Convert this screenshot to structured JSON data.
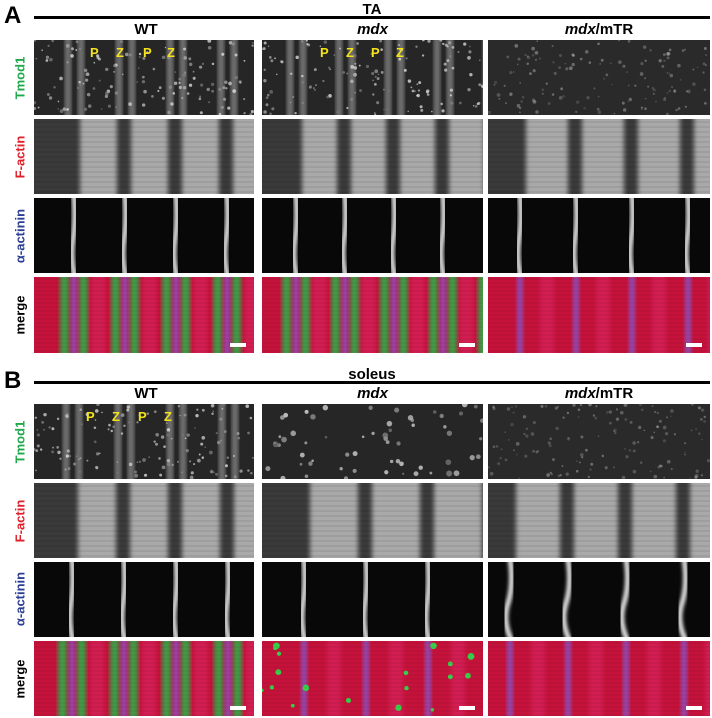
{
  "panels": [
    {
      "letter": "A",
      "title": "TA",
      "columns": [
        {
          "main": "WT",
          "suffix": ""
        },
        {
          "main": "mdx",
          "suffix": ""
        },
        {
          "main": "mdx",
          "suffix": "/mTR"
        }
      ],
      "rows": [
        "Tmod1",
        "F-actin",
        "α-actinin",
        "merge"
      ],
      "marker_labels": [
        "P",
        "Z",
        "P",
        "Z"
      ]
    },
    {
      "letter": "B",
      "title": "soleus",
      "columns": [
        {
          "main": "WT",
          "suffix": ""
        },
        {
          "main": "mdx",
          "suffix": ""
        },
        {
          "main": "mdx",
          "suffix": "/mTR"
        }
      ],
      "rows": [
        "Tmod1",
        "F-actin",
        "α-actinin",
        "merge"
      ],
      "marker_labels": [
        "P",
        "Z",
        "P",
        "Z"
      ]
    }
  ],
  "colors": {
    "Tmod1": "#1ea84a",
    "F-actin": "#e0202a",
    "alpha-actinin": "#2c3e94",
    "merge": "#000000",
    "marker_text": "#f4e21c"
  }
}
